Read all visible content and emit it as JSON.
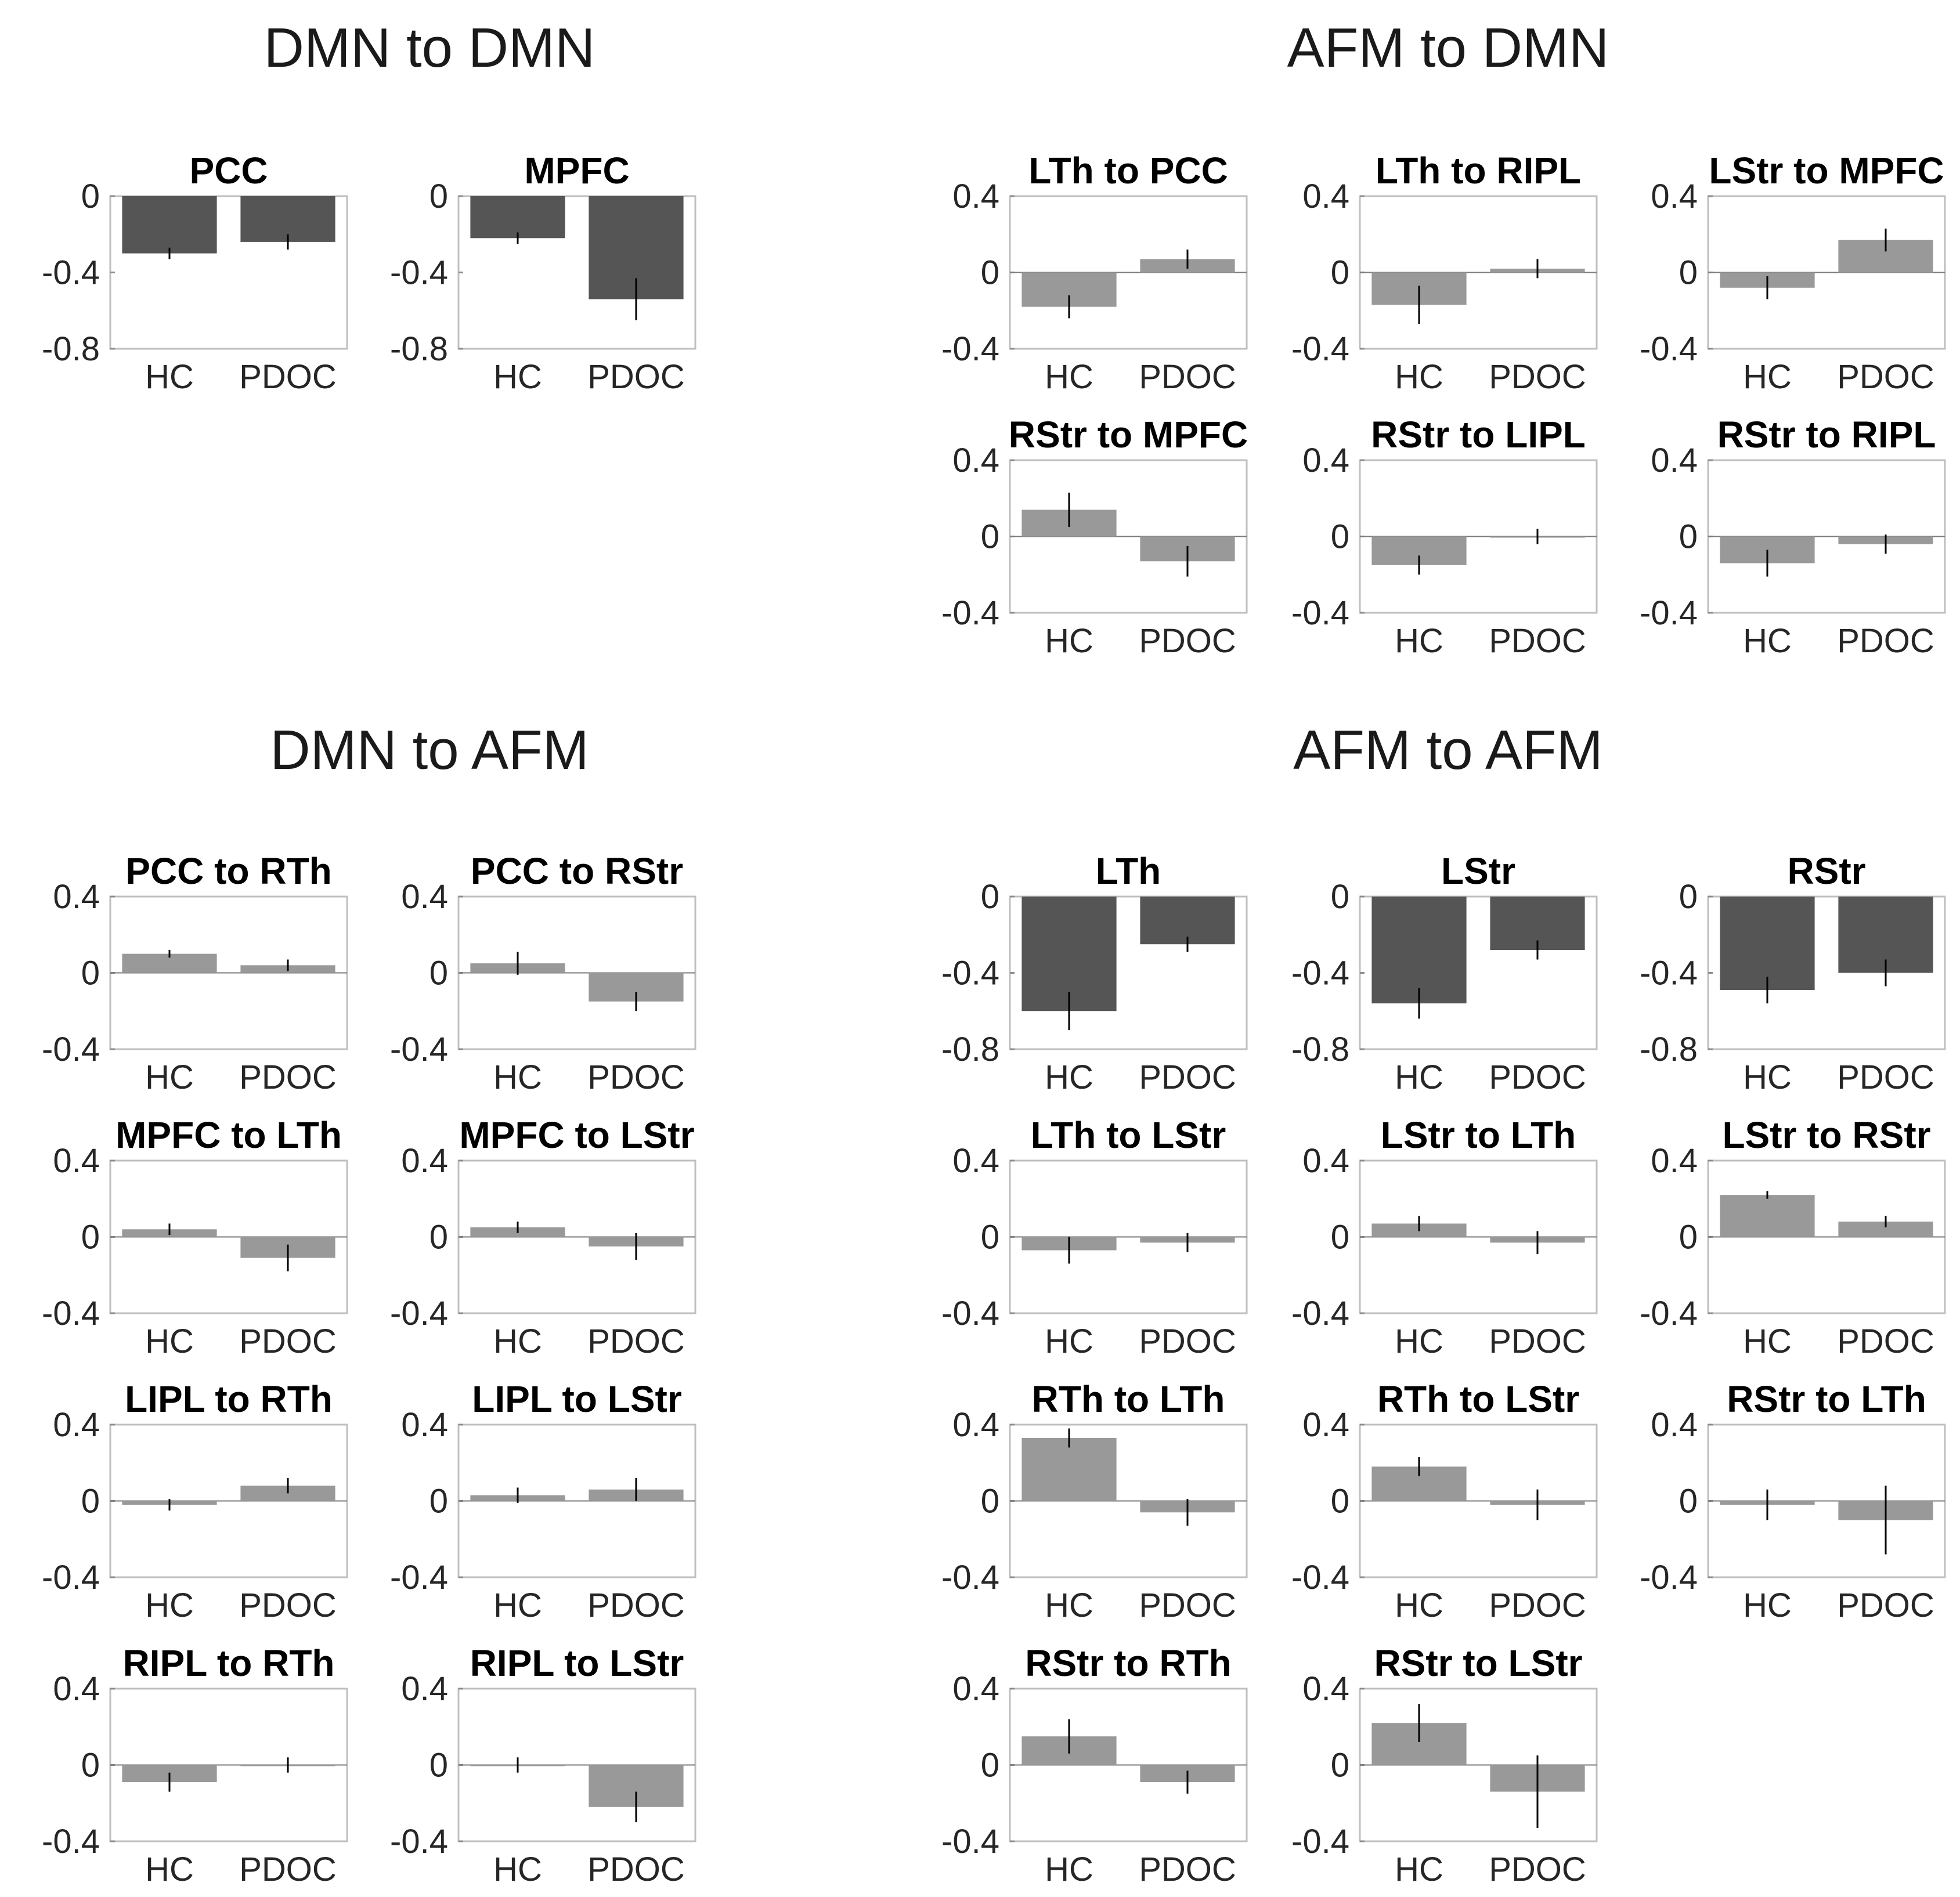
{
  "sections": {
    "dmn_dmn": "DMN to DMN",
    "afm_dmn": "AFM to DMN",
    "dmn_afm": "DMN to AFM",
    "afm_afm": "AFM to AFM"
  },
  "colors": {
    "dark": "#555555",
    "light": "#999999",
    "axis": "#bfbfbf",
    "err": "#000000"
  },
  "chart_data": [
    {
      "type": "bar",
      "section": "DMN to DMN",
      "title": "PCC",
      "categories": [
        "HC",
        "PDOC"
      ],
      "values": [
        -0.3,
        -0.24
      ],
      "errors": [
        0.03,
        0.04
      ],
      "ylim": [
        -0.8,
        0
      ],
      "yticks": [
        "0",
        "-0.4",
        "-0.8"
      ],
      "style": "dark"
    },
    {
      "type": "bar",
      "section": "DMN to DMN",
      "title": "MPFC",
      "categories": [
        "HC",
        "PDOC"
      ],
      "values": [
        -0.22,
        -0.54
      ],
      "errors": [
        0.03,
        0.11
      ],
      "ylim": [
        -0.8,
        0
      ],
      "yticks": [
        "0",
        "-0.4",
        "-0.8"
      ],
      "style": "dark"
    },
    {
      "type": "bar",
      "section": "AFM to DMN",
      "title": "LTh to PCC",
      "categories": [
        "HC",
        "PDOC"
      ],
      "values": [
        -0.18,
        0.07
      ],
      "errors": [
        0.06,
        0.05
      ],
      "ylim": [
        -0.4,
        0.4
      ],
      "yticks": [
        "0.4",
        "0",
        "-0.4"
      ],
      "style": "light"
    },
    {
      "type": "bar",
      "section": "AFM to DMN",
      "title": "LTh to RIPL",
      "categories": [
        "HC",
        "PDOC"
      ],
      "values": [
        -0.17,
        0.02
      ],
      "errors": [
        0.1,
        0.05
      ],
      "ylim": [
        -0.4,
        0.4
      ],
      "yticks": [
        "0.4",
        "0",
        "-0.4"
      ],
      "style": "light"
    },
    {
      "type": "bar",
      "section": "AFM to DMN",
      "title": "LStr to MPFC",
      "categories": [
        "HC",
        "PDOC"
      ],
      "values": [
        -0.08,
        0.17
      ],
      "errors": [
        0.06,
        0.06
      ],
      "ylim": [
        -0.4,
        0.4
      ],
      "yticks": [
        "0.4",
        "0",
        "-0.4"
      ],
      "style": "light"
    },
    {
      "type": "bar",
      "section": "AFM to DMN",
      "title": "RStr to MPFC",
      "categories": [
        "HC",
        "PDOC"
      ],
      "values": [
        0.14,
        -0.13
      ],
      "errors": [
        0.09,
        0.08
      ],
      "ylim": [
        -0.4,
        0.4
      ],
      "yticks": [
        "0.4",
        "0",
        "-0.4"
      ],
      "style": "light"
    },
    {
      "type": "bar",
      "section": "AFM to DMN",
      "title": "RStr to LIPL",
      "categories": [
        "HC",
        "PDOC"
      ],
      "values": [
        -0.15,
        0.0
      ],
      "errors": [
        0.05,
        0.04
      ],
      "ylim": [
        -0.4,
        0.4
      ],
      "yticks": [
        "0.4",
        "0",
        "-0.4"
      ],
      "style": "light"
    },
    {
      "type": "bar",
      "section": "AFM to DMN",
      "title": "RStr to RIPL",
      "categories": [
        "HC",
        "PDOC"
      ],
      "values": [
        -0.14,
        -0.04
      ],
      "errors": [
        0.07,
        0.05
      ],
      "ylim": [
        -0.4,
        0.4
      ],
      "yticks": [
        "0.4",
        "0",
        "-0.4"
      ],
      "style": "light"
    },
    {
      "type": "bar",
      "section": "DMN to AFM",
      "title": "PCC to RTh",
      "categories": [
        "HC",
        "PDOC"
      ],
      "values": [
        0.1,
        0.04
      ],
      "errors": [
        0.02,
        0.03
      ],
      "ylim": [
        -0.4,
        0.4
      ],
      "yticks": [
        "0.4",
        "0",
        "-0.4"
      ],
      "style": "light"
    },
    {
      "type": "bar",
      "section": "DMN to AFM",
      "title": "PCC to RStr",
      "categories": [
        "HC",
        "PDOC"
      ],
      "values": [
        0.05,
        -0.15
      ],
      "errors": [
        0.06,
        0.05
      ],
      "ylim": [
        -0.4,
        0.4
      ],
      "yticks": [
        "0.4",
        "0",
        "-0.4"
      ],
      "style": "light"
    },
    {
      "type": "bar",
      "section": "DMN to AFM",
      "title": "MPFC to LTh",
      "categories": [
        "HC",
        "PDOC"
      ],
      "values": [
        0.04,
        -0.11
      ],
      "errors": [
        0.03,
        0.07
      ],
      "ylim": [
        -0.4,
        0.4
      ],
      "yticks": [
        "0.4",
        "0",
        "-0.4"
      ],
      "style": "light"
    },
    {
      "type": "bar",
      "section": "DMN to AFM",
      "title": "MPFC to LStr",
      "categories": [
        "HC",
        "PDOC"
      ],
      "values": [
        0.05,
        -0.05
      ],
      "errors": [
        0.03,
        0.07
      ],
      "ylim": [
        -0.4,
        0.4
      ],
      "yticks": [
        "0.4",
        "0",
        "-0.4"
      ],
      "style": "light"
    },
    {
      "type": "bar",
      "section": "DMN to AFM",
      "title": "LIPL to RTh",
      "categories": [
        "HC",
        "PDOC"
      ],
      "values": [
        -0.02,
        0.08
      ],
      "errors": [
        0.03,
        0.04
      ],
      "ylim": [
        -0.4,
        0.4
      ],
      "yticks": [
        "0.4",
        "0",
        "-0.4"
      ],
      "style": "light"
    },
    {
      "type": "bar",
      "section": "DMN to AFM",
      "title": "LIPL to LStr",
      "categories": [
        "HC",
        "PDOC"
      ],
      "values": [
        0.03,
        0.06
      ],
      "errors": [
        0.04,
        0.06
      ],
      "ylim": [
        -0.4,
        0.4
      ],
      "yticks": [
        "0.4",
        "0",
        "-0.4"
      ],
      "style": "light"
    },
    {
      "type": "bar",
      "section": "DMN to AFM",
      "title": "RIPL to RTh",
      "categories": [
        "HC",
        "PDOC"
      ],
      "values": [
        -0.09,
        0.0
      ],
      "errors": [
        0.05,
        0.04
      ],
      "ylim": [
        -0.4,
        0.4
      ],
      "yticks": [
        "0.4",
        "0",
        "-0.4"
      ],
      "style": "light"
    },
    {
      "type": "bar",
      "section": "DMN to AFM",
      "title": "RIPL to LStr",
      "categories": [
        "HC",
        "PDOC"
      ],
      "values": [
        0.0,
        -0.22
      ],
      "errors": [
        0.04,
        0.08
      ],
      "ylim": [
        -0.4,
        0.4
      ],
      "yticks": [
        "0.4",
        "0",
        "-0.4"
      ],
      "style": "light"
    },
    {
      "type": "bar",
      "section": "AFM to AFM",
      "title": "LTh",
      "categories": [
        "HC",
        "PDOC"
      ],
      "values": [
        -0.6,
        -0.25
      ],
      "errors": [
        0.1,
        0.04
      ],
      "ylim": [
        -0.8,
        0
      ],
      "yticks": [
        "0",
        "-0.4",
        "-0.8"
      ],
      "style": "dark"
    },
    {
      "type": "bar",
      "section": "AFM to AFM",
      "title": "LStr",
      "categories": [
        "HC",
        "PDOC"
      ],
      "values": [
        -0.56,
        -0.28
      ],
      "errors": [
        0.08,
        0.05
      ],
      "ylim": [
        -0.8,
        0
      ],
      "yticks": [
        "0",
        "-0.4",
        "-0.8"
      ],
      "style": "dark"
    },
    {
      "type": "bar",
      "section": "AFM to AFM",
      "title": "RStr",
      "categories": [
        "HC",
        "PDOC"
      ],
      "values": [
        -0.49,
        -0.4
      ],
      "errors": [
        0.07,
        0.07
      ],
      "ylim": [
        -0.8,
        0
      ],
      "yticks": [
        "0",
        "-0.4",
        "-0.8"
      ],
      "style": "dark"
    },
    {
      "type": "bar",
      "section": "AFM to AFM",
      "title": "LTh to LStr",
      "categories": [
        "HC",
        "PDOC"
      ],
      "values": [
        -0.07,
        -0.03
      ],
      "errors": [
        0.07,
        0.05
      ],
      "ylim": [
        -0.4,
        0.4
      ],
      "yticks": [
        "0.4",
        "0",
        "-0.4"
      ],
      "style": "light"
    },
    {
      "type": "bar",
      "section": "AFM to AFM",
      "title": "LStr to LTh",
      "categories": [
        "HC",
        "PDOC"
      ],
      "values": [
        0.07,
        -0.03
      ],
      "errors": [
        0.04,
        0.06
      ],
      "ylim": [
        -0.4,
        0.4
      ],
      "yticks": [
        "0.4",
        "0",
        "-0.4"
      ],
      "style": "light"
    },
    {
      "type": "bar",
      "section": "AFM to AFM",
      "title": "LStr to RStr",
      "categories": [
        "HC",
        "PDOC"
      ],
      "values": [
        0.22,
        0.08
      ],
      "errors": [
        0.02,
        0.03
      ],
      "ylim": [
        -0.4,
        0.4
      ],
      "yticks": [
        "0.4",
        "0",
        "-0.4"
      ],
      "style": "light"
    },
    {
      "type": "bar",
      "section": "AFM to AFM",
      "title": "RTh to LTh",
      "categories": [
        "HC",
        "PDOC"
      ],
      "values": [
        0.33,
        -0.06
      ],
      "errors": [
        0.05,
        0.07
      ],
      "ylim": [
        -0.4,
        0.4
      ],
      "yticks": [
        "0.4",
        "0",
        "-0.4"
      ],
      "style": "light"
    },
    {
      "type": "bar",
      "section": "AFM to AFM",
      "title": "RTh to LStr",
      "categories": [
        "HC",
        "PDOC"
      ],
      "values": [
        0.18,
        -0.02
      ],
      "errors": [
        0.05,
        0.08
      ],
      "ylim": [
        -0.4,
        0.4
      ],
      "yticks": [
        "0.4",
        "0",
        "-0.4"
      ],
      "style": "light"
    },
    {
      "type": "bar",
      "section": "AFM to AFM",
      "title": "RStr to LTh",
      "categories": [
        "HC",
        "PDOC"
      ],
      "values": [
        -0.02,
        -0.1
      ],
      "errors": [
        0.08,
        0.18
      ],
      "ylim": [
        -0.4,
        0.4
      ],
      "yticks": [
        "0.4",
        "0",
        "-0.4"
      ],
      "style": "light"
    },
    {
      "type": "bar",
      "section": "AFM to AFM",
      "title": "RStr to RTh",
      "categories": [
        "HC",
        "PDOC"
      ],
      "values": [
        0.15,
        -0.09
      ],
      "errors": [
        0.09,
        0.06
      ],
      "ylim": [
        -0.4,
        0.4
      ],
      "yticks": [
        "0.4",
        "0",
        "-0.4"
      ],
      "style": "light"
    },
    {
      "type": "bar",
      "section": "AFM to AFM",
      "title": "RStr to LStr",
      "categories": [
        "HC",
        "PDOC"
      ],
      "values": [
        0.22,
        -0.14
      ],
      "errors": [
        0.1,
        0.19
      ],
      "ylim": [
        -0.4,
        0.4
      ],
      "yticks": [
        "0.4",
        "0",
        "-0.4"
      ],
      "style": "light"
    }
  ]
}
